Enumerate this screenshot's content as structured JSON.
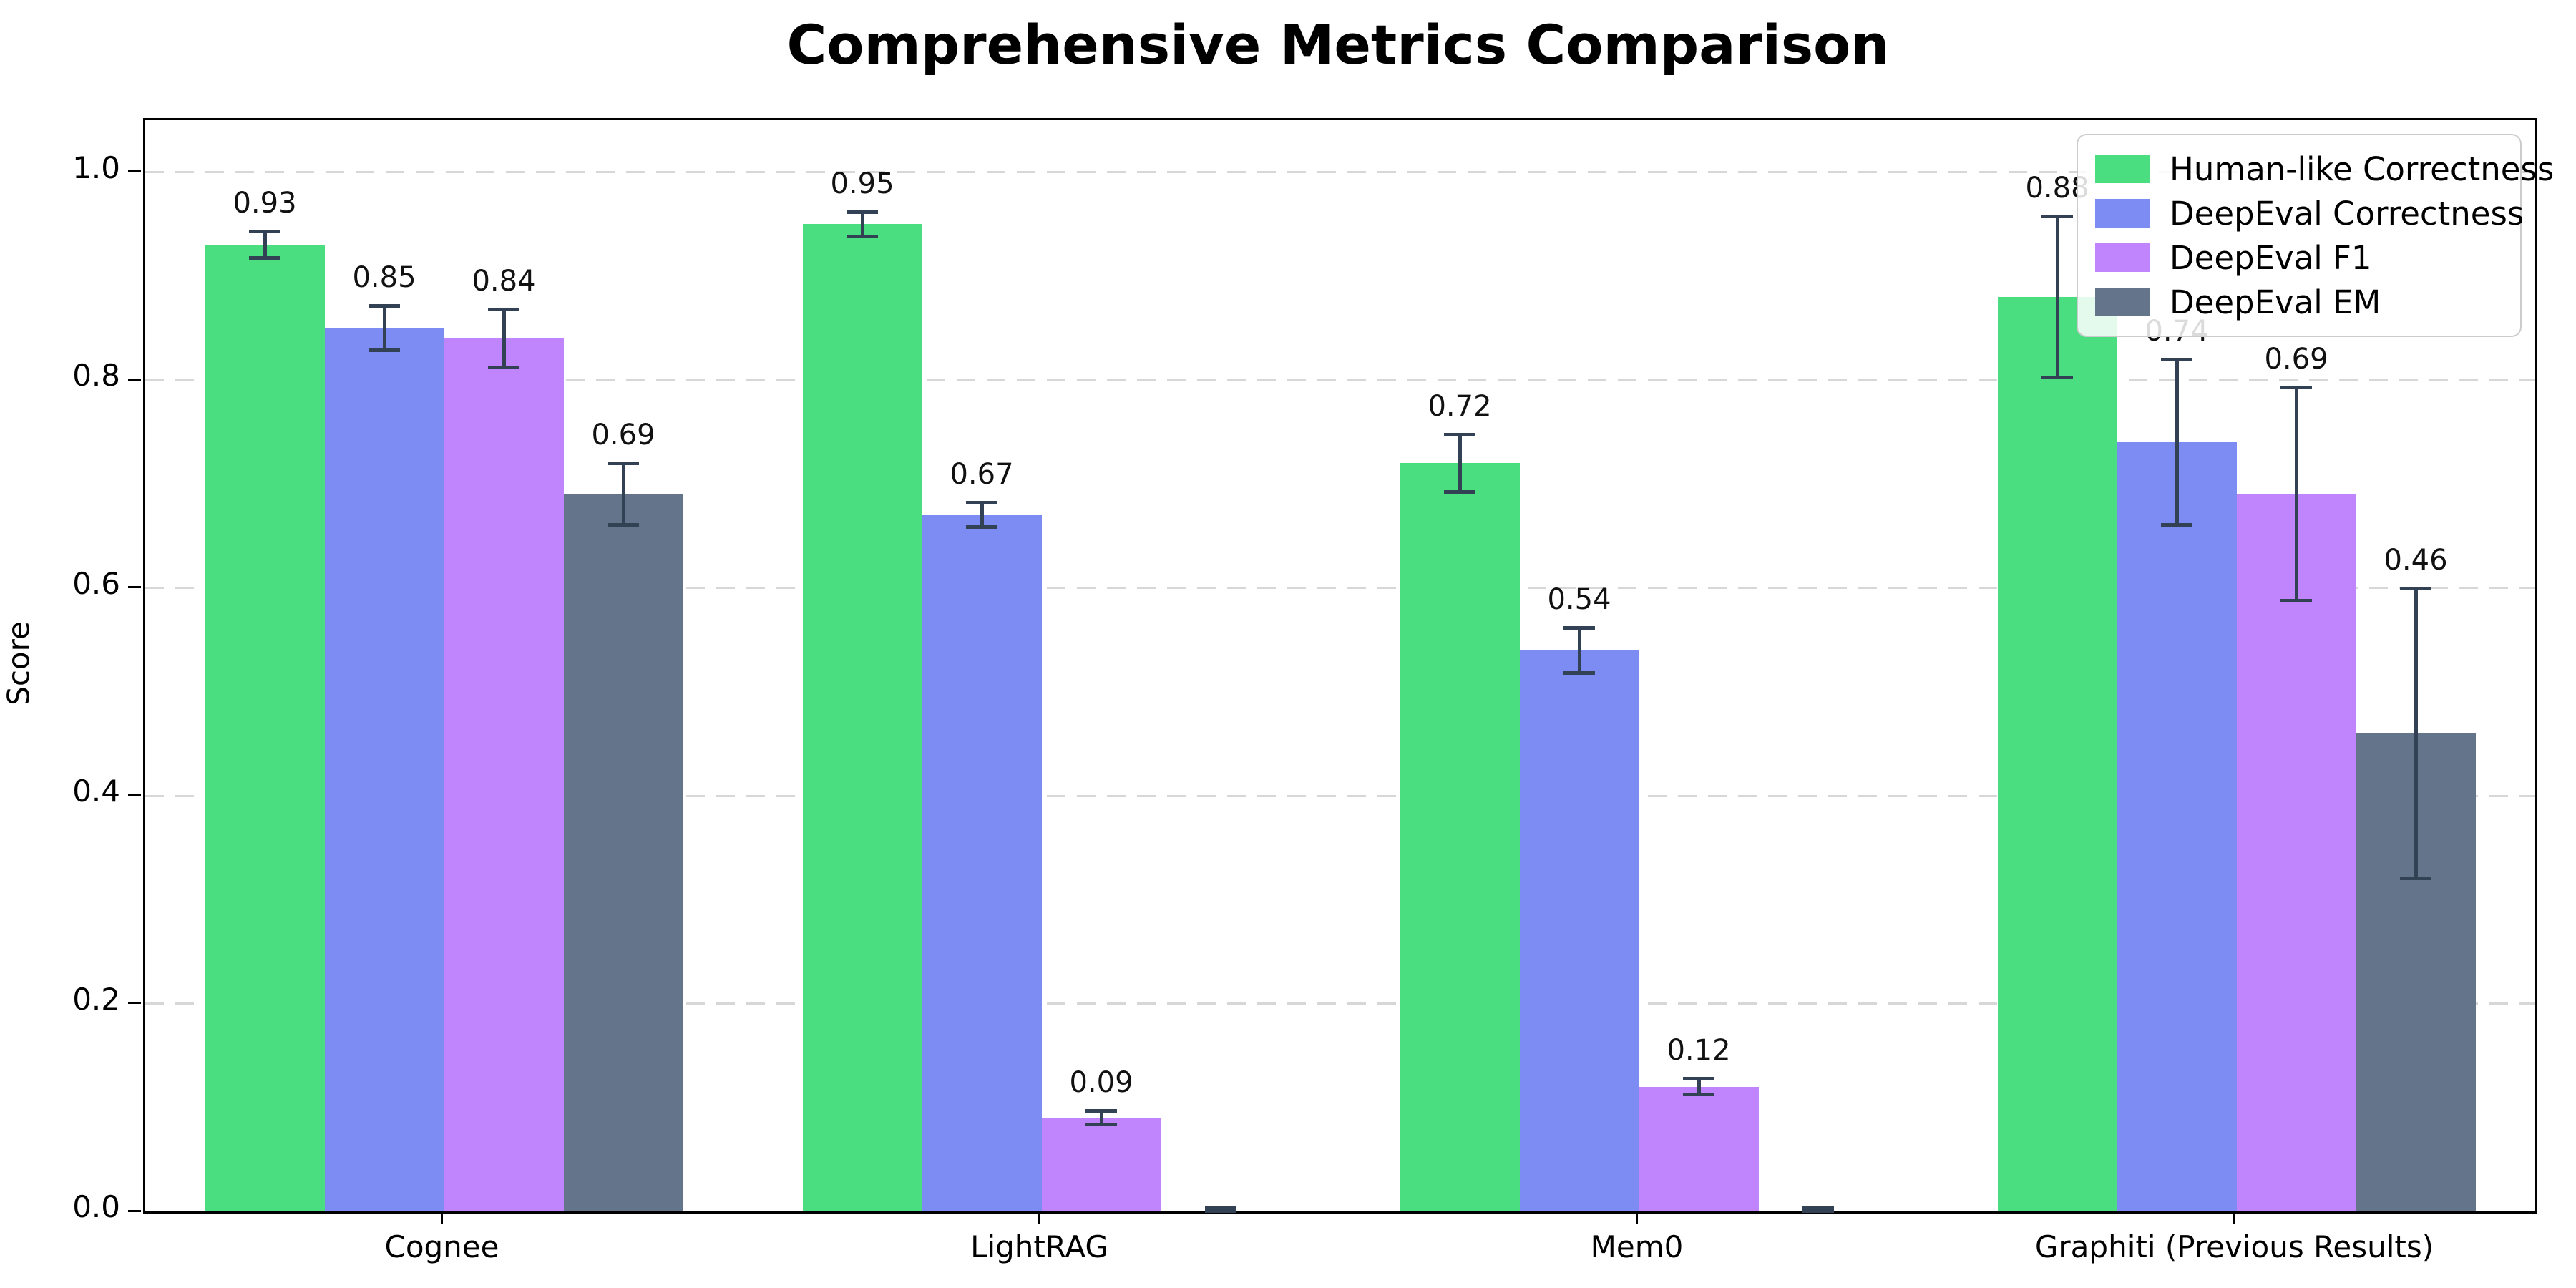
{
  "chart_data": {
    "type": "bar",
    "title": "Comprehensive Metrics Comparison",
    "ylabel": "Score",
    "xlabel": "",
    "categories": [
      "Cognee",
      "LightRAG",
      "Mem0",
      "Graphiti (Previous Results)"
    ],
    "series": [
      {
        "name": "Human-like Correctness",
        "color": "#4ade80",
        "values": [
          0.93,
          0.95,
          0.72,
          0.88
        ],
        "errors": [
          0.013,
          0.012,
          0.028,
          0.078
        ]
      },
      {
        "name": "DeepEval Correctness",
        "color": "#7d8cf2",
        "values": [
          0.85,
          0.67,
          0.54,
          0.74
        ],
        "errors": [
          0.022,
          0.012,
          0.022,
          0.08
        ]
      },
      {
        "name": "DeepEval F1",
        "color": "#c084fc",
        "values": [
          0.84,
          0.09,
          0.12,
          0.69
        ],
        "errors": [
          0.028,
          0.007,
          0.008,
          0.103
        ]
      },
      {
        "name": "DeepEval EM",
        "color": "#64748b",
        "values": [
          0.69,
          0.0,
          0.0,
          0.46
        ],
        "errors": [
          0.03,
          0.004,
          0.004,
          0.14
        ]
      }
    ],
    "bar_value_labels": {
      "Cognee": [
        "0.93",
        "0.85",
        "0.84",
        "0.69"
      ],
      "LightRAG": [
        "0.95",
        "0.67",
        "0.09",
        ""
      ],
      "Mem0": [
        "0.72",
        "0.54",
        "0.12",
        ""
      ],
      "Graphiti (Previous Results)": [
        "0.88",
        "0.74",
        "0.69",
        "0.46"
      ]
    },
    "ylim": [
      0,
      1.05
    ],
    "yticks": [
      0.0,
      0.2,
      0.4,
      0.6,
      0.8,
      1.0
    ],
    "ytick_labels": [
      "0.0",
      "0.2",
      "0.4",
      "0.6",
      "0.8",
      "1.0"
    ],
    "grid": "horizontal dashed",
    "legend_position": "upper right",
    "error_bars": true
  },
  "colors": {
    "error_bar": "#334155",
    "gridline": "#d7d7d7",
    "axis": "#000000",
    "legend_border": "#cccccc",
    "background": "#ffffff",
    "text": "#000000"
  }
}
